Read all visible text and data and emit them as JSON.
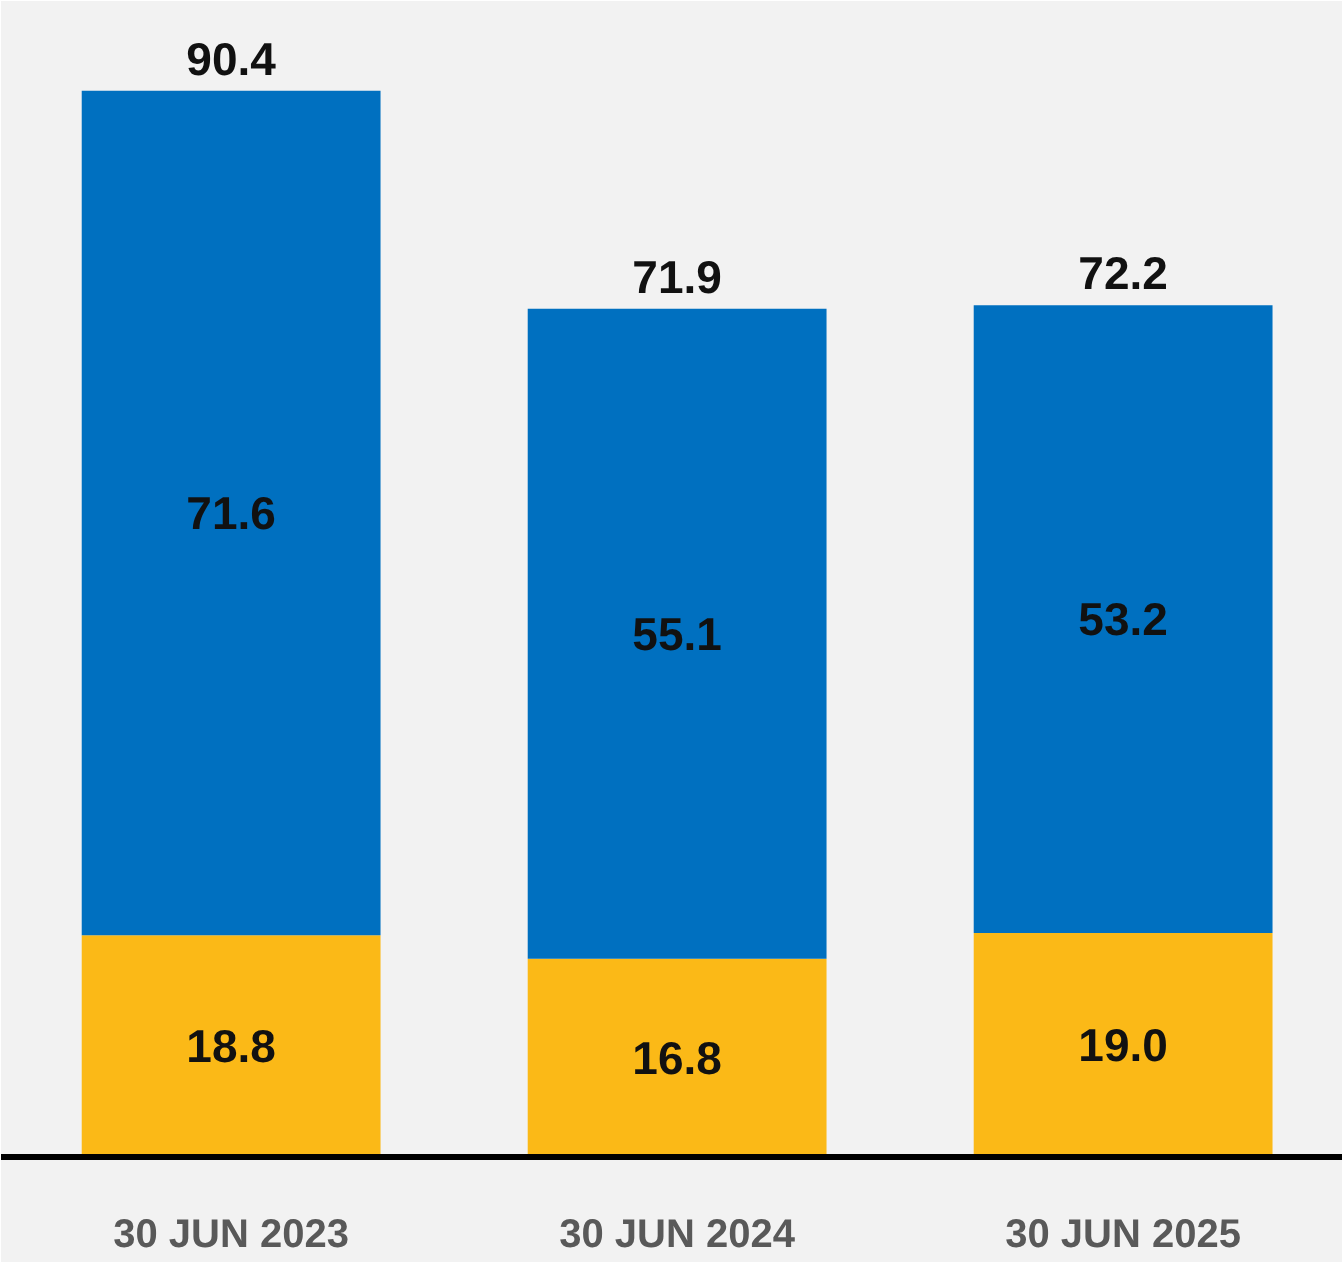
{
  "chart_data": {
    "type": "bar",
    "stacked": true,
    "categories": [
      "30 JUN 2023",
      "30 JUN 2024",
      "30 JUN 2025"
    ],
    "series": [
      {
        "color": "#fbb917",
        "values": [
          18.8,
          16.8,
          19.0
        ],
        "value_labels": [
          "18.8",
          "16.8",
          "19.0"
        ]
      },
      {
        "color": "#0070c0",
        "values": [
          71.6,
          55.1,
          53.2
        ],
        "value_labels": [
          "71.6",
          "55.1",
          "53.2"
        ]
      }
    ],
    "totals": [
      "90.4",
      "71.9",
      "72.2"
    ],
    "ylim": [
      0,
      98
    ]
  }
}
